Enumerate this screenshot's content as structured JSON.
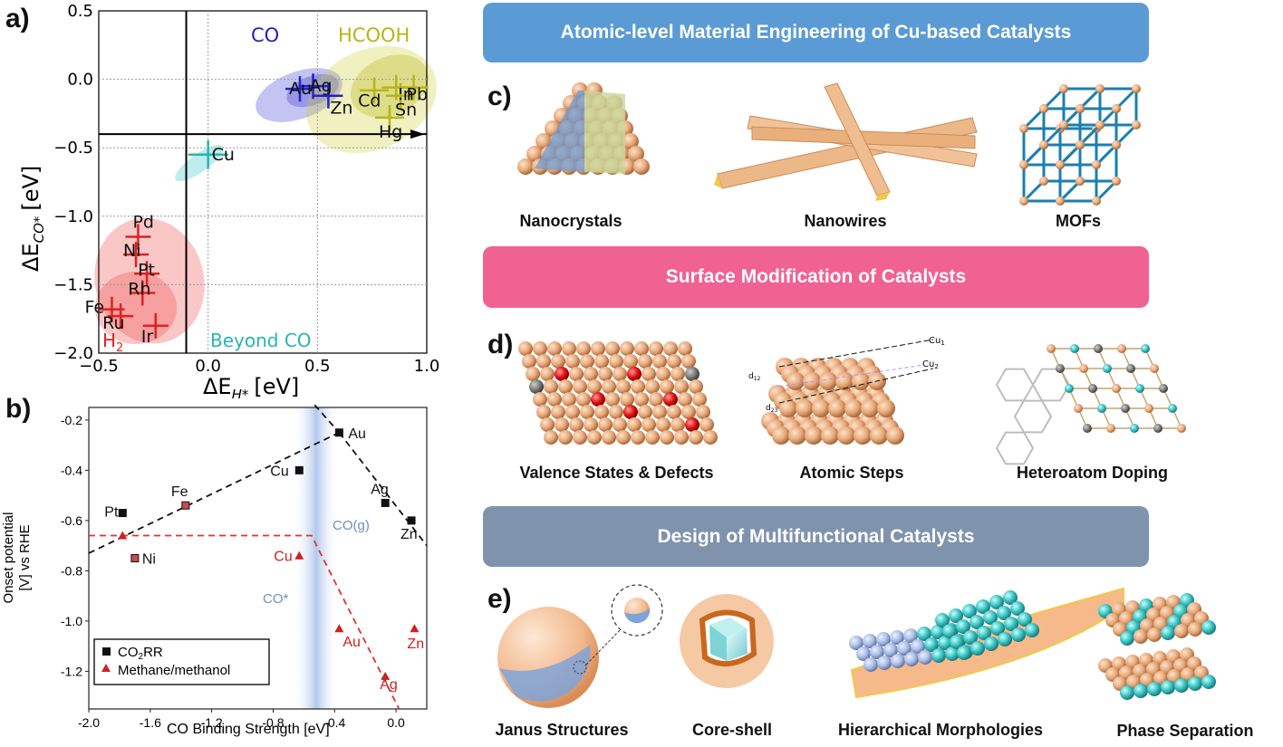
{
  "panels": {
    "a": "a)",
    "b": "b)",
    "c": "c)",
    "d": "d)",
    "e": "e)"
  },
  "banners": {
    "top": "Atomic-level Material Engineering of Cu-based Catalysts",
    "middle": "Surface Modification of Catalysts",
    "bottom": "Design of Multifunctional Catalysts"
  },
  "captions": {
    "c": [
      "Nanocrystals",
      "Nanowires",
      "MOFs"
    ],
    "d": [
      "Valence States & Defects",
      "Atomic Steps",
      "Heteroatom Doping"
    ],
    "e": [
      "Janus Structures",
      "Core-shell",
      "Hierarchical  Morphologies",
      "Phase Separation"
    ]
  },
  "d_labels": {
    "cu1": "Cu",
    "cu1_sub": "1",
    "cu2": "Cu",
    "cu2_sub": "2",
    "d12": "d",
    "d12_sub": "12",
    "d23": "d",
    "d23_sub": "23"
  },
  "colors": {
    "blue_banner": "#5b9bd5",
    "pink_banner": "#f06292",
    "gray_banner": "#7f93ad",
    "copper": "#e8a878",
    "teal": "#36c2c2"
  },
  "chart_data": [
    {
      "type": "scatter",
      "ylabel_main": "ΔE",
      "ylabel_sub": "CO*",
      "ylabel_unit": "[eV]",
      "xlabel_main": "ΔE",
      "xlabel_sub": "H*",
      "xlabel_unit": "[eV]",
      "xlim": [
        -0.5,
        1.0
      ],
      "ylim": [
        -2.0,
        0.5
      ],
      "xticks": [
        "−0.5",
        "0.0",
        "0.5",
        "1.0"
      ],
      "yticks": [
        "0.5",
        "0.0",
        "−0.5",
        "−1.0",
        "−1.5",
        "−2.0"
      ],
      "region_labels": {
        "co": "CO",
        "hcooh": "HCOOH",
        "beyond": "Beyond CO",
        "h2_main": "H",
        "h2_sub": "2"
      },
      "threshold_lines": {
        "x": -0.1,
        "y": -0.4
      },
      "points": [
        {
          "label": "Au",
          "x": 0.42,
          "y": -0.07,
          "group": "co"
        },
        {
          "label": "Ag",
          "x": 0.48,
          "y": -0.05,
          "group": "co"
        },
        {
          "label": "Zn",
          "x": 0.55,
          "y": -0.12,
          "group": "co"
        },
        {
          "label": "Cd",
          "x": 0.76,
          "y": -0.08,
          "group": "hcooh"
        },
        {
          "label": "In",
          "x": 0.86,
          "y": -0.06,
          "group": "hcooh"
        },
        {
          "label": "Sn",
          "x": 0.88,
          "y": -0.12,
          "group": "hcooh"
        },
        {
          "label": "Pb",
          "x": 0.94,
          "y": -0.06,
          "group": "hcooh"
        },
        {
          "label": "Hg",
          "x": 0.83,
          "y": -0.28,
          "group": "hcooh"
        },
        {
          "label": "Cu",
          "x": 0.0,
          "y": -0.55,
          "group": "beyond"
        },
        {
          "label": "Pd",
          "x": -0.32,
          "y": -1.15,
          "group": "h2"
        },
        {
          "label": "Ni",
          "x": -0.33,
          "y": -1.28,
          "group": "h2"
        },
        {
          "label": "Pt",
          "x": -0.28,
          "y": -1.42,
          "group": "h2"
        },
        {
          "label": "Rh",
          "x": -0.3,
          "y": -1.56,
          "group": "h2"
        },
        {
          "label": "Fe",
          "x": -0.44,
          "y": -1.68,
          "group": "h2"
        },
        {
          "label": "Ru",
          "x": -0.4,
          "y": -1.73,
          "group": "h2"
        },
        {
          "label": "Ir",
          "x": -0.24,
          "y": -1.8,
          "group": "h2"
        }
      ],
      "group_colors": {
        "co": "#2222cc",
        "hcooh": "#b5b51a",
        "beyond": "#2ab3b3",
        "h2": "#dd2222"
      }
    },
    {
      "type": "scatter",
      "ylabel": "Onset potential [V] vs RHE",
      "xlabel": "CO Binding Strength [eV]",
      "xlim": [
        -2.0,
        0.2
      ],
      "ylim": [
        -1.35,
        -0.15
      ],
      "xticks": [
        "-2.0",
        "-1.6",
        "-1.2",
        "-0.8",
        "-0.4",
        "0.0"
      ],
      "yticks": [
        "-0.2",
        "-0.4",
        "-0.6",
        "-0.8",
        "-1.0",
        "-1.2"
      ],
      "region_labels": {
        "cog": "CO(g)",
        "costar": "CO*"
      },
      "legend": {
        "co2rr_main": "CO",
        "co2rr_sub": "2",
        "co2rr_tail": "RR",
        "methane": "Methane/methanol"
      },
      "series": [
        {
          "name": "CO2RR",
          "marker": "square",
          "color": "#000000",
          "points": [
            {
              "label": "Pt",
              "x": -1.78,
              "y": -0.57
            },
            {
              "label": "Fe",
              "x": -1.37,
              "y": -0.54
            },
            {
              "label": "Ni",
              "x": -1.7,
              "y": -0.75
            },
            {
              "label": "Cu",
              "x": -0.63,
              "y": -0.4
            },
            {
              "label": "Au",
              "x": -0.37,
              "y": -0.25
            },
            {
              "label": "Ag",
              "x": -0.07,
              "y": -0.53
            },
            {
              "label": "Zn",
              "x": 0.1,
              "y": -0.6
            }
          ]
        },
        {
          "name": "Methane/methanol",
          "marker": "triangle",
          "color": "#cc2222",
          "points": [
            {
              "label": "Cu",
              "x": -0.63,
              "y": -0.74
            },
            {
              "label": "Au",
              "x": -0.37,
              "y": -1.03
            },
            {
              "label": "Ag",
              "x": -0.07,
              "y": -1.22
            },
            {
              "label": "Zn",
              "x": 0.12,
              "y": -1.03
            }
          ]
        }
      ]
    }
  ]
}
